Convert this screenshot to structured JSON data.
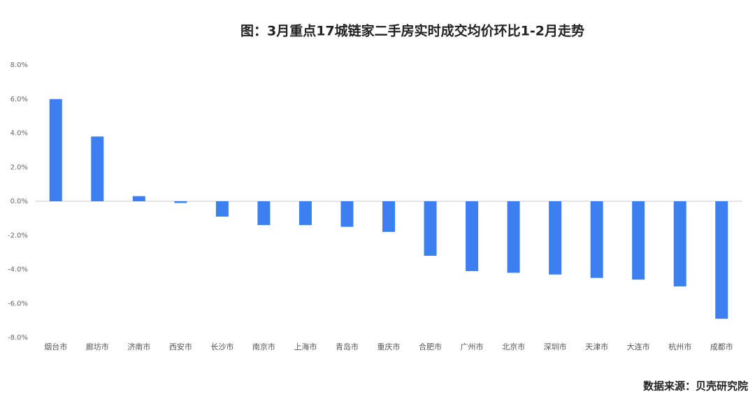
{
  "chart_data": {
    "type": "bar",
    "title": "图：3月重点17城链家二手房实时成交均价环比1-2月走势",
    "source": "数据来源：贝壳研究院",
    "categories": [
      "烟台市",
      "廊坊市",
      "济南市",
      "西安市",
      "长沙市",
      "南京市",
      "上海市",
      "青岛市",
      "重庆市",
      "合肥市",
      "广州市",
      "北京市",
      "深圳市",
      "天津市",
      "大连市",
      "杭州市",
      "成都市"
    ],
    "values": [
      6.0,
      3.8,
      0.3,
      -0.1,
      -0.9,
      -1.4,
      -1.4,
      -1.5,
      -1.8,
      -3.2,
      -4.1,
      -4.2,
      -4.3,
      -4.5,
      -4.6,
      -5.0,
      -6.9
    ],
    "color": "#3b7ff0",
    "ylim": [
      -8,
      8
    ],
    "yticks": [
      {
        "value": 8,
        "label": "8.0%"
      },
      {
        "value": 6,
        "label": "6.0%"
      },
      {
        "value": 4,
        "label": "4.0%"
      },
      {
        "value": 2,
        "label": "2.0%"
      },
      {
        "value": 0,
        "label": "0.0%"
      },
      {
        "value": -2,
        "label": "-2.0%"
      },
      {
        "value": -4,
        "label": "-4.0%"
      },
      {
        "value": -6,
        "label": "-6.0%"
      },
      {
        "value": -8,
        "label": "-8.0%"
      }
    ],
    "grid": false
  }
}
